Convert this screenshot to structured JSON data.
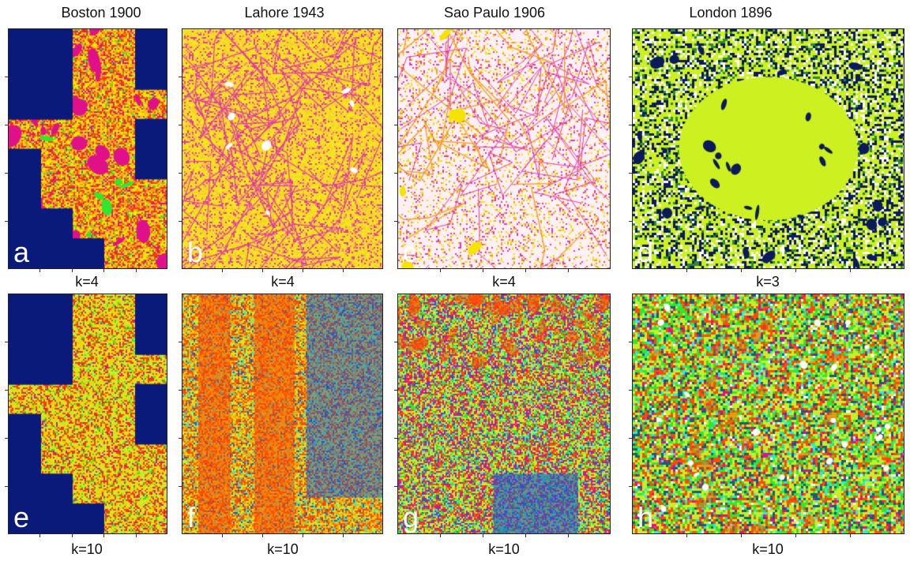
{
  "columns": [
    {
      "title": "Boston 1900",
      "k_top": "k=4",
      "k_bottom": "k=10",
      "letter_top": "a",
      "letter_bottom": "e"
    },
    {
      "title": "Lahore 1943",
      "k_top": "k=4",
      "k_bottom": "k=10",
      "letter_top": "b",
      "letter_bottom": "f"
    },
    {
      "title": "Sao Paulo 1906",
      "k_top": "k=4",
      "k_bottom": "k=10",
      "letter_top": "c",
      "letter_bottom": "g"
    },
    {
      "title": "London 1896",
      "k_top": "k=3",
      "k_bottom": "k=10",
      "letter_top": "d",
      "letter_bottom": "h"
    }
  ],
  "palettes": {
    "a": [
      "#0a1a7a",
      "#f5e400",
      "#ff3a00",
      "#e0108a",
      "#2ee82e",
      "#ff9a20"
    ],
    "b": [
      "#f2e61c",
      "#e23aa5",
      "#f6d02a",
      "#ff6aa0"
    ],
    "c": [
      "#fdf0f6",
      "#e33aa5",
      "#f49a20",
      "#f5e400"
    ],
    "d": [
      "#ccf020",
      "#0a1a5a",
      "#ffffff",
      "#2a8a3a"
    ],
    "e": [
      "#0a1a7a",
      "#c8ee2a",
      "#ff3a00",
      "#f5d000",
      "#2ee82e",
      "#e0108a"
    ],
    "f": [
      "#ff4a00",
      "#f5b000",
      "#c8ee2a",
      "#1a5ad0",
      "#2ee8c8"
    ],
    "g": [
      "#e0108a",
      "#c8ee2a",
      "#ff4a00",
      "#2ee82e",
      "#1a5ad0",
      "#2ee8e8"
    ],
    "h": [
      "#c8ee2a",
      "#2ee82e",
      "#ff4a00",
      "#1a5a7a",
      "#e0108a",
      "#2ee8e8",
      "#ffffff"
    ]
  }
}
